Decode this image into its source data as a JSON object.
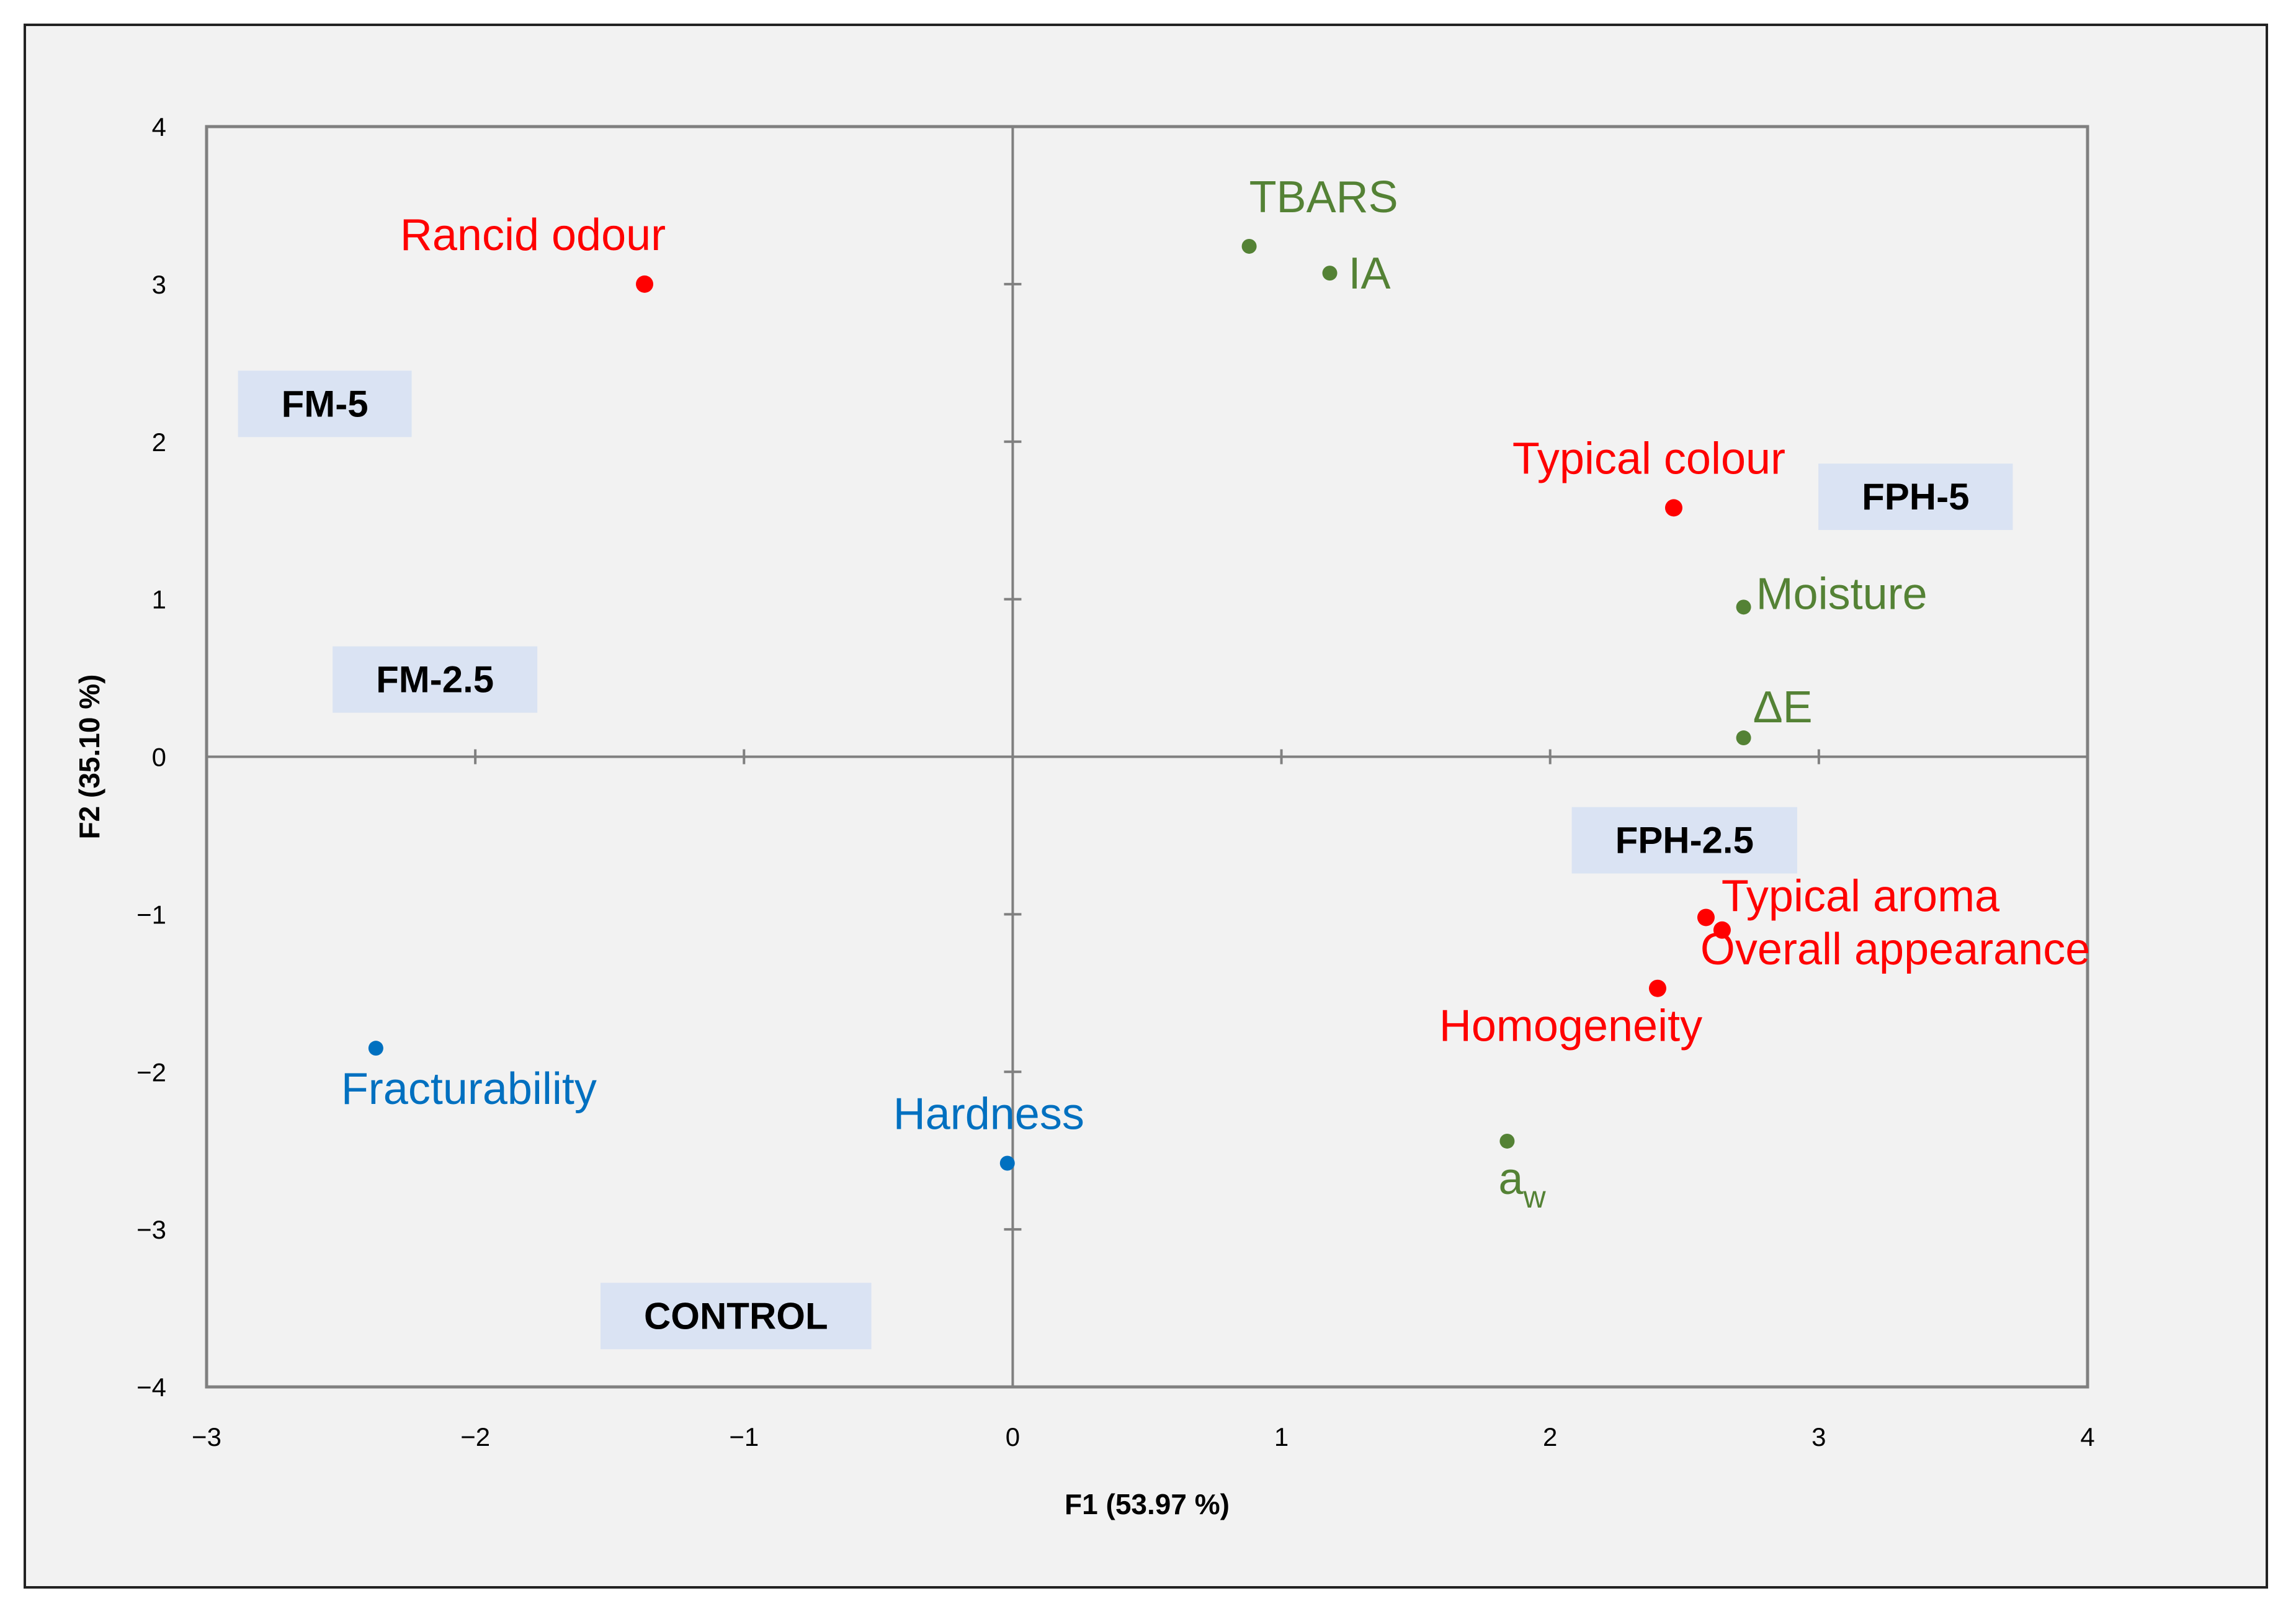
{
  "chart_data": {
    "type": "scatter",
    "title": "",
    "xlabel": "F1 (53.97 %)",
    "ylabel": "F2 (35.10 %)",
    "xlim": [
      -3,
      4
    ],
    "ylim": [
      -4,
      4
    ],
    "xticks": [
      -3,
      -2,
      -1,
      0,
      1,
      2,
      3,
      4
    ],
    "yticks": [
      -4,
      -3,
      -2,
      -1,
      0,
      1,
      2,
      3,
      4
    ],
    "tick_labels_x": [
      "−3",
      "−2",
      "−1",
      "0",
      "1",
      "2",
      "3",
      "4"
    ],
    "tick_labels_y": [
      "−4",
      "−3",
      "−2",
      "−1",
      "0",
      "1",
      "2",
      "3",
      "4"
    ],
    "grid": false,
    "colors": {
      "sensory": "#ff0000",
      "physicochemical": "#548235",
      "texture": "#0070c0",
      "observation_box": "#dae3f3",
      "plot_background": "#f2f2f2",
      "axis_line": "#808080"
    },
    "variables": [
      {
        "name": "Rancid odour",
        "group": "sensory",
        "x": -1.37,
        "y": 3.0
      },
      {
        "name": "Typical colour",
        "group": "sensory",
        "x": 2.46,
        "y": 1.58
      },
      {
        "name": "Typical aroma",
        "group": "sensory",
        "x": 2.58,
        "y": -1.02
      },
      {
        "name": "Overall appearance",
        "group": "sensory",
        "x": 2.64,
        "y": -1.1
      },
      {
        "name": "Homogeneity",
        "group": "sensory",
        "x": 2.4,
        "y": -1.47
      },
      {
        "name": "TBARS",
        "group": "physicochemical",
        "x": 0.88,
        "y": 3.24
      },
      {
        "name": "IA",
        "group": "physicochemical",
        "x": 1.18,
        "y": 3.07
      },
      {
        "name": "Moisture",
        "group": "physicochemical",
        "x": 2.72,
        "y": 0.95
      },
      {
        "name": "ΔE",
        "group": "physicochemical",
        "x": 2.72,
        "y": 0.12
      },
      {
        "name": "a",
        "subscript": "w",
        "group": "physicochemical",
        "x": 1.84,
        "y": -2.44
      },
      {
        "name": "Fracturability",
        "group": "texture",
        "x": -2.37,
        "y": -1.85
      },
      {
        "name": "Hardness",
        "group": "texture",
        "x": -0.02,
        "y": -2.58
      }
    ],
    "observations": [
      {
        "name": "FM-5",
        "x": -2.56,
        "y": 2.24
      },
      {
        "name": "FM-2.5",
        "x": -2.15,
        "y": 0.49
      },
      {
        "name": "FPH-5",
        "x": 3.36,
        "y": 1.65
      },
      {
        "name": "FPH-2.5",
        "x": 2.5,
        "y": -0.53
      },
      {
        "name": "CONTROL",
        "x": -1.03,
        "y": -3.55
      }
    ]
  }
}
